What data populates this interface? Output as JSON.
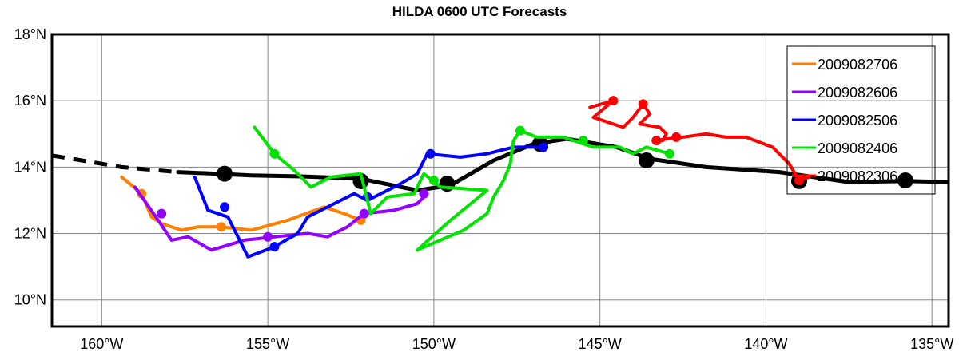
{
  "chart_data": {
    "type": "line",
    "title": "HILDA 0600 UTC Forecasts",
    "xlabel": "",
    "ylabel": "",
    "xlim": [
      -161.5,
      -134.5
    ],
    "ylim": [
      9.2,
      18.0
    ],
    "grid": true,
    "legend_position": "top-right",
    "x_ticks": [
      {
        "value": -160,
        "label": "160°W"
      },
      {
        "value": -155,
        "label": "155°W"
      },
      {
        "value": -150,
        "label": "150°W"
      },
      {
        "value": -145,
        "label": "145°W"
      },
      {
        "value": -140,
        "label": "140°W"
      },
      {
        "value": -135,
        "label": "135°W"
      }
    ],
    "y_ticks": [
      {
        "value": 10,
        "label": "10°N"
      },
      {
        "value": 12,
        "label": "12°N"
      },
      {
        "value": 14,
        "label": "14°N"
      },
      {
        "value": 16,
        "label": "16°N"
      },
      {
        "value": 18,
        "label": "18°N"
      }
    ],
    "best_track": {
      "color": "#000000",
      "dashed": [
        [
          -161.5,
          14.35
        ],
        [
          -159.4,
          14.0
        ],
        [
          -157.7,
          13.85
        ]
      ],
      "solid": [
        [
          -157.7,
          13.85
        ],
        [
          -156.5,
          13.8
        ],
        [
          -155.5,
          13.75
        ],
        [
          -154.0,
          13.72
        ],
        [
          -152.2,
          13.65
        ],
        [
          -150.5,
          13.3
        ],
        [
          -149.5,
          13.45
        ],
        [
          -148.2,
          14.2
        ],
        [
          -147.0,
          14.7
        ],
        [
          -146.0,
          14.85
        ],
        [
          -144.5,
          14.6
        ],
        [
          -143.5,
          14.25
        ],
        [
          -141.8,
          14.0
        ],
        [
          -139.6,
          13.85
        ],
        [
          -137.5,
          13.55
        ],
        [
          -135.7,
          13.58
        ],
        [
          -134.5,
          13.55
        ]
      ],
      "markers": [
        [
          -156.3,
          13.8
        ],
        [
          -152.2,
          13.58
        ],
        [
          -149.6,
          13.5
        ],
        [
          -146.8,
          14.7
        ],
        [
          -143.6,
          14.2
        ],
        [
          -139.0,
          13.58
        ],
        [
          -135.8,
          13.6
        ]
      ]
    },
    "series": [
      {
        "name": "2009082706",
        "color": "#ff7f00",
        "points": [
          [
            -159.4,
            13.7
          ],
          [
            -158.8,
            13.2
          ],
          [
            -158.5,
            12.5
          ],
          [
            -158.2,
            12.3
          ],
          [
            -157.6,
            12.1
          ],
          [
            -157.1,
            12.2
          ],
          [
            -156.4,
            12.2
          ],
          [
            -155.5,
            12.1
          ],
          [
            -154.4,
            12.4
          ],
          [
            -153.3,
            12.8
          ],
          [
            -152.7,
            12.6
          ],
          [
            -152.2,
            12.4
          ]
        ],
        "markers": [
          [
            -158.8,
            13.2
          ],
          [
            -156.4,
            12.2
          ],
          [
            -152.2,
            12.4
          ]
        ]
      },
      {
        "name": "2009082606",
        "color": "#9400ff",
        "points": [
          [
            -159.0,
            13.4
          ],
          [
            -158.3,
            12.4
          ],
          [
            -157.9,
            11.8
          ],
          [
            -157.4,
            11.9
          ],
          [
            -156.7,
            11.5
          ],
          [
            -155.7,
            11.8
          ],
          [
            -154.8,
            11.9
          ],
          [
            -153.8,
            12.0
          ],
          [
            -153.2,
            11.9
          ],
          [
            -152.6,
            12.2
          ],
          [
            -152.1,
            12.6
          ],
          [
            -151.2,
            12.7
          ],
          [
            -150.5,
            12.9
          ],
          [
            -150.2,
            13.2
          ]
        ],
        "markers": [
          [
            -158.2,
            12.6
          ],
          [
            -155.0,
            11.9
          ],
          [
            -152.1,
            12.6
          ],
          [
            -150.3,
            13.2
          ]
        ]
      },
      {
        "name": "2009082506",
        "color": "#0000ff",
        "points": [
          [
            -157.2,
            13.7
          ],
          [
            -156.8,
            12.7
          ],
          [
            -156.2,
            12.5
          ],
          [
            -155.6,
            11.3
          ],
          [
            -154.8,
            11.6
          ],
          [
            -154.1,
            12.0
          ],
          [
            -153.8,
            12.5
          ],
          [
            -153.0,
            12.9
          ],
          [
            -152.4,
            13.2
          ],
          [
            -152.0,
            13.0
          ],
          [
            -151.0,
            13.5
          ],
          [
            -150.5,
            13.8
          ],
          [
            -150.2,
            14.4
          ],
          [
            -149.2,
            14.3
          ],
          [
            -148.4,
            14.4
          ],
          [
            -147.6,
            14.6
          ],
          [
            -146.6,
            14.6
          ]
        ],
        "markers": [
          [
            -156.3,
            12.8
          ],
          [
            -154.8,
            11.6
          ],
          [
            -152.0,
            13.1
          ],
          [
            -150.1,
            14.4
          ],
          [
            -146.7,
            14.6
          ]
        ]
      },
      {
        "name": "2009082406",
        "color": "#00e400",
        "points": [
          [
            -155.4,
            15.2
          ],
          [
            -154.8,
            14.4
          ],
          [
            -154.2,
            13.9
          ],
          [
            -153.7,
            13.4
          ],
          [
            -153.1,
            13.7
          ],
          [
            -152.2,
            13.8
          ],
          [
            -151.9,
            12.6
          ],
          [
            -151.4,
            13.1
          ],
          [
            -150.6,
            13.2
          ],
          [
            -150.3,
            13.8
          ],
          [
            -149.8,
            13.4
          ],
          [
            -148.4,
            13.3
          ],
          [
            -149.5,
            12.4
          ],
          [
            -150.5,
            11.5
          ],
          [
            -149.1,
            12.1
          ],
          [
            -148.4,
            12.6
          ],
          [
            -148.2,
            13.1
          ],
          [
            -147.9,
            13.6
          ],
          [
            -147.7,
            14.1
          ],
          [
            -147.6,
            14.8
          ],
          [
            -147.4,
            15.1
          ],
          [
            -146.9,
            14.9
          ],
          [
            -146.1,
            14.9
          ],
          [
            -145.2,
            14.6
          ],
          [
            -144.4,
            14.6
          ],
          [
            -144.0,
            14.4
          ],
          [
            -143.6,
            14.6
          ],
          [
            -142.9,
            14.4
          ]
        ],
        "markers": [
          [
            -154.8,
            14.4
          ],
          [
            -150.0,
            13.6
          ],
          [
            -147.4,
            15.1
          ],
          [
            -145.5,
            14.8
          ],
          [
            -142.9,
            14.4
          ]
        ]
      },
      {
        "name": "2009082306",
        "color": "#ff0000",
        "points": [
          [
            -145.3,
            15.8
          ],
          [
            -144.6,
            16.0
          ],
          [
            -145.2,
            15.5
          ],
          [
            -144.3,
            15.2
          ],
          [
            -144.0,
            15.5
          ],
          [
            -143.7,
            15.9
          ],
          [
            -143.5,
            15.6
          ],
          [
            -143.8,
            15.3
          ],
          [
            -143.2,
            15.2
          ],
          [
            -143.0,
            15.0
          ],
          [
            -143.1,
            14.8
          ],
          [
            -143.4,
            14.8
          ],
          [
            -142.5,
            14.9
          ],
          [
            -141.8,
            15.0
          ],
          [
            -141.2,
            14.9
          ],
          [
            -140.6,
            14.9
          ],
          [
            -139.8,
            14.6
          ],
          [
            -139.3,
            14.1
          ],
          [
            -139.0,
            13.6
          ],
          [
            -138.7,
            13.7
          ]
        ],
        "markers": [
          [
            -144.6,
            16.0
          ],
          [
            -143.7,
            15.9
          ],
          [
            -142.7,
            14.9
          ],
          [
            -143.3,
            14.8
          ],
          [
            -139.0,
            13.6
          ]
        ]
      }
    ]
  }
}
